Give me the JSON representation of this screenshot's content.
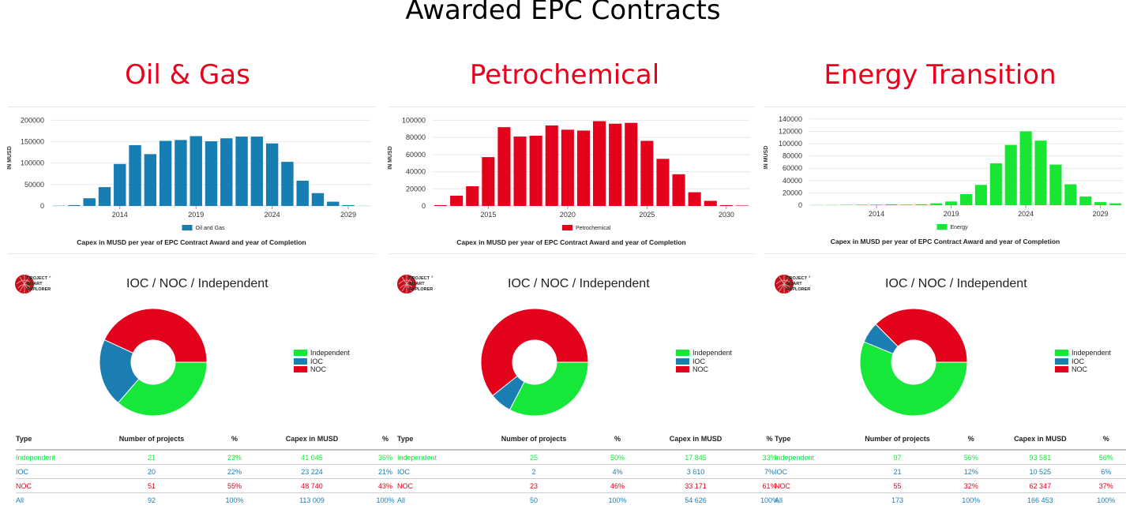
{
  "page_title": "Awarded EPC Contracts",
  "colors": {
    "independent": "#16e83a",
    "ioc": "#1a7eb2",
    "noc": "#e3021b",
    "title_red": "#e8001c"
  },
  "panels": [
    {
      "title": "Oil & Gas",
      "chart_data": {
        "type": "bar",
        "ylabel": "IN MUSD",
        "subtitle": "Capex in MUSD per year of EPC Contract Award and year of Completion",
        "series": [
          {
            "name": "Oil and Gas",
            "color": "#177eb3",
            "values": [
              500,
              2000,
              18000,
              44000,
              98000,
              142000,
              121000,
              152000,
              154000,
              163000,
              151000,
              158000,
              162000,
              162000,
              146000,
              103000,
              59000,
              30000,
              10000,
              2000,
              200
            ]
          }
        ],
        "x": [
          2010,
          2011,
          2012,
          2013,
          2014,
          2015,
          2016,
          2017,
          2018,
          2019,
          2020,
          2021,
          2022,
          2023,
          2024,
          2025,
          2026,
          2027,
          2028,
          2029,
          2030
        ],
        "yticks": [
          0,
          50000,
          100000,
          150000,
          200000
        ],
        "xticks": [
          2014,
          2019,
          2024,
          2029
        ],
        "ylim": [
          0,
          210000
        ]
      },
      "donut": {
        "title": "IOC / NOC / Independent",
        "slices": [
          {
            "label": "Independent",
            "value": 41045
          },
          {
            "label": "IOC",
            "value": 23224
          },
          {
            "label": "NOC",
            "value": 48740
          }
        ]
      },
      "table": {
        "headers": [
          "Type",
          "Number of projects",
          "%",
          "Capex in MUSD",
          "%"
        ],
        "rows": [
          [
            "Independent",
            "21",
            "23%",
            "41 045",
            "36%"
          ],
          [
            "IOC",
            "20",
            "22%",
            "23 224",
            "21%"
          ],
          [
            "NOC",
            "51",
            "55%",
            "48 740",
            "43%"
          ],
          [
            "All",
            "92",
            "100%",
            "113 009",
            "100%"
          ]
        ]
      }
    },
    {
      "title": "Petrochemical",
      "chart_data": {
        "type": "bar",
        "ylabel": "IN MUSD",
        "subtitle": "Capex in MUSD per year of EPC Contract Award and year of Completion",
        "series": [
          {
            "name": "Petrochemical",
            "color": "#e3021b",
            "values": [
              1000,
              12000,
              23000,
              57000,
              92000,
              81000,
              82000,
              94000,
              89000,
              88000,
              99000,
              96000,
              97000,
              76000,
              55000,
              37000,
              16000,
              6000,
              1000,
              500
            ]
          }
        ],
        "x": [
          2012,
          2013,
          2014,
          2015,
          2016,
          2017,
          2018,
          2019,
          2020,
          2021,
          2022,
          2023,
          2024,
          2025,
          2026,
          2027,
          2028,
          2029,
          2030,
          2031
        ],
        "yticks": [
          0,
          20000,
          40000,
          60000,
          80000,
          100000
        ],
        "xticks": [
          2015,
          2020,
          2025,
          2030
        ],
        "ylim": [
          0,
          105000
        ]
      },
      "donut": {
        "title": "IOC / NOC / Independent",
        "slices": [
          {
            "label": "Independent",
            "value": 17845
          },
          {
            "label": "IOC",
            "value": 3610
          },
          {
            "label": "NOC",
            "value": 33171
          }
        ]
      },
      "table": {
        "headers": [
          "Type",
          "Number of projects",
          "%",
          "Capex in MUSD",
          "%"
        ],
        "rows": [
          [
            "Independent",
            "25",
            "50%",
            "17 845",
            "33%"
          ],
          [
            "IOC",
            "2",
            "4%",
            "3 610",
            "7%"
          ],
          [
            "NOC",
            "23",
            "46%",
            "33 171",
            "61%"
          ],
          [
            "All",
            "50",
            "100%",
            "54 626",
            "100%"
          ]
        ]
      }
    },
    {
      "title": "Energy Transition",
      "chart_data": {
        "type": "bar",
        "ylabel": "IN MUSD",
        "subtitle": "Capex in MUSD per year of EPC Contract Award and year of Completion",
        "series": [
          {
            "name": "Energy",
            "color": "#19e632",
            "values": [
              200,
              300,
              500,
              800,
              1000,
              1500,
              1000,
              1500,
              3000,
              6000,
              18000,
              33000,
              68000,
              98000,
              120000,
              105000,
              66000,
              34000,
              14000,
              5000,
              3000
            ]
          }
        ],
        "x": [
          2010,
          2011,
          2012,
          2013,
          2014,
          2015,
          2016,
          2017,
          2018,
          2019,
          2020,
          2021,
          2022,
          2023,
          2024,
          2025,
          2026,
          2027,
          2028,
          2029,
          2030
        ],
        "yticks": [
          0,
          20000,
          40000,
          60000,
          80000,
          100000,
          120000,
          140000
        ],
        "xticks": [
          2014,
          2019,
          2024,
          2029
        ],
        "ylim": [
          0,
          145000
        ]
      },
      "donut": {
        "title": "IOC / NOC / Independent",
        "slices": [
          {
            "label": "Independent",
            "value": 93581
          },
          {
            "label": "IOC",
            "value": 10525
          },
          {
            "label": "NOC",
            "value": 62347
          }
        ]
      },
      "table": {
        "headers": [
          "Type",
          "Number of projects",
          "%",
          "Capex in MUSD",
          "%"
        ],
        "rows": [
          [
            "Independent",
            "97",
            "56%",
            "93 581",
            "56%"
          ],
          [
            "IOC",
            "21",
            "12%",
            "10 525",
            "6%"
          ],
          [
            "NOC",
            "55",
            "32%",
            "62 347",
            "37%"
          ],
          [
            "All",
            "173",
            "100%",
            "166 453",
            "100%"
          ]
        ]
      }
    }
  ],
  "logo": {
    "line1": "PROJECT",
    "line2": "SMART",
    "line3": "EXPLORER",
    "mark": "*"
  }
}
